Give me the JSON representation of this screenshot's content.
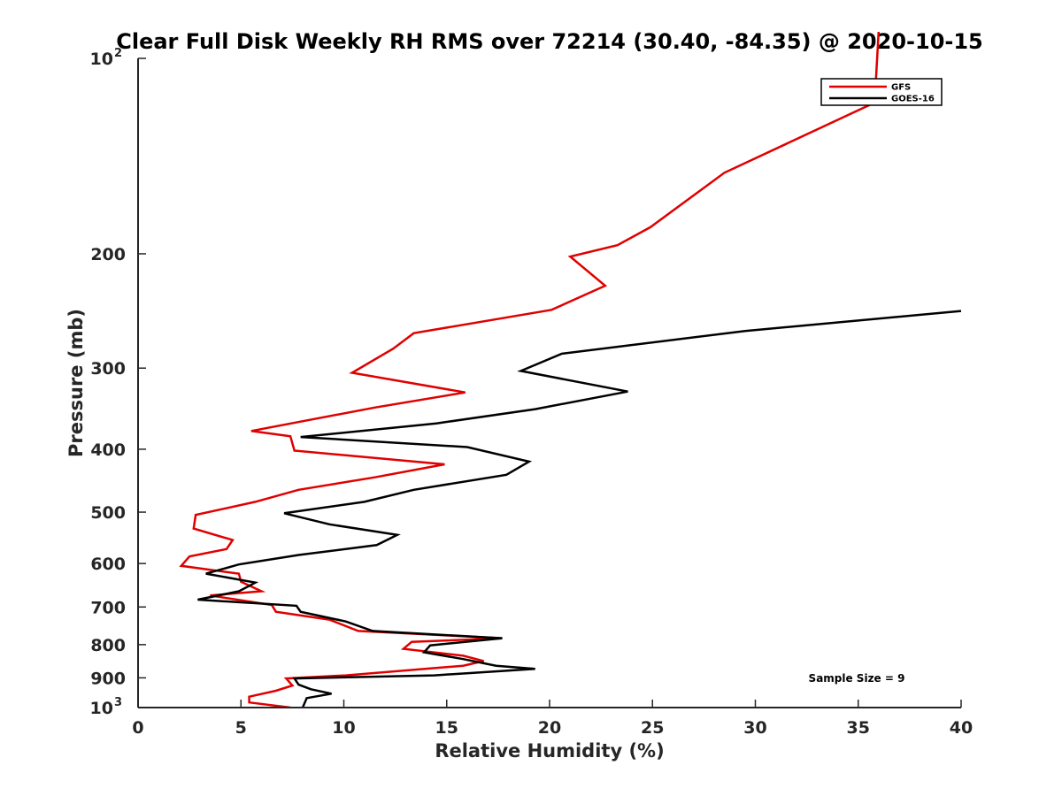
{
  "chart_data": {
    "type": "line",
    "title": "Clear Full Disk Weekly RH RMS over 72214 (30.40, -84.35) @ 2020-10-15",
    "xlabel": "Relative Humidity (%)",
    "ylabel": "Pressure (mb)",
    "xlim": [
      0,
      40
    ],
    "ylim": [
      100,
      1000
    ],
    "y_scale": "log",
    "y_reversed": true,
    "grid": false,
    "legend_position": "top-right",
    "x_ticks": [
      "0",
      "5",
      "10",
      "15",
      "20",
      "25",
      "30",
      "35",
      "40"
    ],
    "y_ticks": [
      {
        "value": 100,
        "base": "10",
        "exp": "2"
      },
      {
        "value": 200,
        "label": "200"
      },
      {
        "value": 300,
        "label": "300"
      },
      {
        "value": 400,
        "label": "400"
      },
      {
        "value": 500,
        "label": "500"
      },
      {
        "value": 600,
        "label": "600"
      },
      {
        "value": 700,
        "label": "700"
      },
      {
        "value": 800,
        "label": "800"
      },
      {
        "value": 900,
        "label": "900"
      },
      {
        "value": 1000,
        "base": "10",
        "exp": "3"
      }
    ],
    "annotation": "Sample Size = 9",
    "series": [
      {
        "name": "GFS",
        "color": "#e00000",
        "points": [
          [
            36.0,
            90
          ],
          [
            35.8,
            117
          ],
          [
            28.5,
            150
          ],
          [
            24.9,
            182
          ],
          [
            23.3,
            194
          ],
          [
            21.0,
            202
          ],
          [
            22.7,
            224
          ],
          [
            20.1,
            244
          ],
          [
            13.4,
            265
          ],
          [
            12.4,
            280
          ],
          [
            10.4,
            305
          ],
          [
            15.9,
            327
          ],
          [
            11.5,
            345
          ],
          [
            5.5,
            375
          ],
          [
            7.4,
            382
          ],
          [
            7.6,
            402
          ],
          [
            14.9,
            422
          ],
          [
            11.5,
            442
          ],
          [
            7.8,
            462
          ],
          [
            5.7,
            482
          ],
          [
            2.8,
            505
          ],
          [
            2.7,
            530
          ],
          [
            4.6,
            552
          ],
          [
            4.3,
            570
          ],
          [
            2.5,
            585
          ],
          [
            2.1,
            605
          ],
          [
            4.9,
            622
          ],
          [
            5.0,
            640
          ],
          [
            6.0,
            662
          ],
          [
            3.5,
            672
          ],
          [
            6.5,
            695
          ],
          [
            6.7,
            712
          ],
          [
            9.3,
            732
          ],
          [
            10.7,
            762
          ],
          [
            17.7,
            782
          ],
          [
            13.3,
            792
          ],
          [
            12.9,
            812
          ],
          [
            15.8,
            832
          ],
          [
            16.8,
            848
          ],
          [
            15.8,
            862
          ],
          [
            10.1,
            892
          ],
          [
            7.2,
            902
          ],
          [
            7.5,
            925
          ],
          [
            6.7,
            942
          ],
          [
            5.4,
            962
          ],
          [
            5.4,
            982
          ],
          [
            7.4,
            1000
          ]
        ]
      },
      {
        "name": "GOES-16",
        "color": "#000000",
        "points": [
          [
            40.0,
            245
          ],
          [
            29.5,
            263
          ],
          [
            20.6,
            285
          ],
          [
            18.6,
            303
          ],
          [
            23.8,
            326
          ],
          [
            19.3,
            347
          ],
          [
            14.5,
            365
          ],
          [
            7.9,
            383
          ],
          [
            16.0,
            397
          ],
          [
            19.0,
            418
          ],
          [
            17.9,
            438
          ],
          [
            13.4,
            462
          ],
          [
            11.0,
            482
          ],
          [
            7.1,
            502
          ],
          [
            9.3,
            522
          ],
          [
            12.6,
            542
          ],
          [
            11.6,
            562
          ],
          [
            7.8,
            582
          ],
          [
            4.9,
            602
          ],
          [
            3.3,
            622
          ],
          [
            5.7,
            642
          ],
          [
            5.3,
            652
          ],
          [
            4.9,
            662
          ],
          [
            2.9,
            682
          ],
          [
            7.7,
            697
          ],
          [
            7.9,
            712
          ],
          [
            10.1,
            737
          ],
          [
            11.4,
            762
          ],
          [
            17.7,
            782
          ],
          [
            14.2,
            802
          ],
          [
            13.9,
            822
          ],
          [
            15.8,
            842
          ],
          [
            17.4,
            862
          ],
          [
            19.3,
            872
          ],
          [
            14.4,
            892
          ],
          [
            7.6,
            902
          ],
          [
            7.8,
            922
          ],
          [
            8.4,
            937
          ],
          [
            9.4,
            952
          ],
          [
            8.2,
            967
          ],
          [
            8.0,
            1000
          ]
        ]
      }
    ]
  }
}
